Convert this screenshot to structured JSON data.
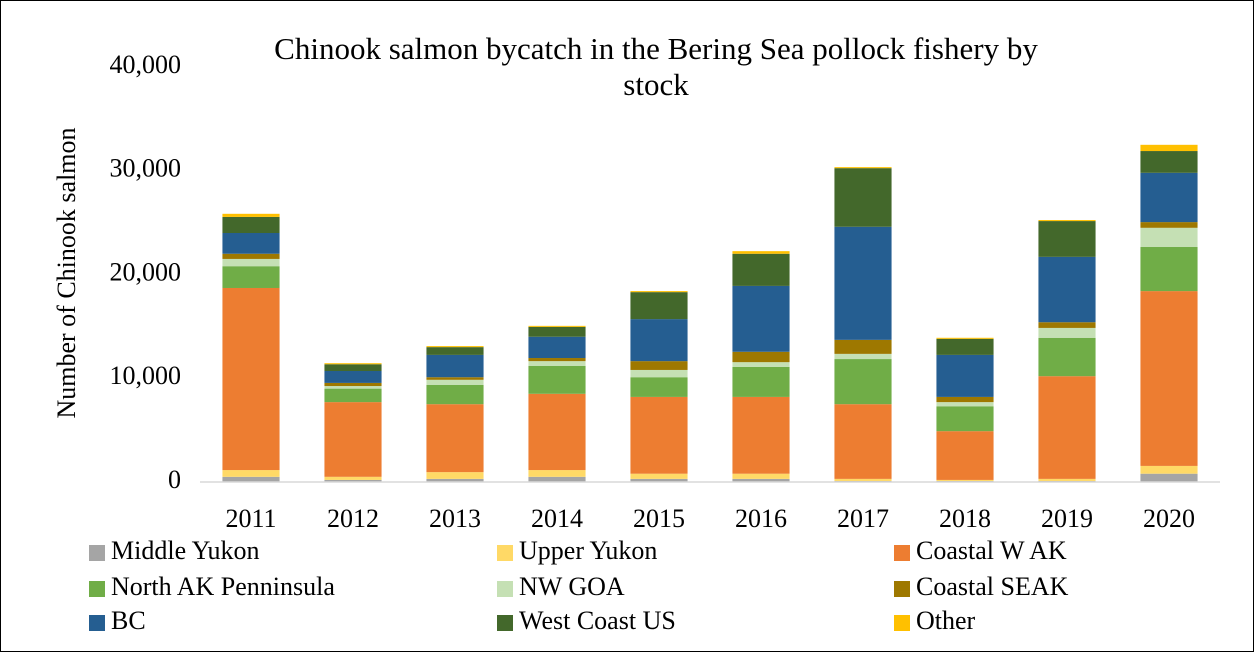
{
  "chart_data": {
    "type": "bar",
    "stacked": true,
    "title": "Chinook salmon bycatch in the Bering Sea pollock fishery by stock",
    "ylabel": "Number of Chinook salmon",
    "categories": [
      "2011",
      "2012",
      "2013",
      "2014",
      "2015",
      "2016",
      "2017",
      "2018",
      "2019",
      "2020"
    ],
    "ylim": [
      0,
      40000
    ],
    "yticks": [
      0,
      {
        "value": 10000,
        "label": "10,000"
      },
      {
        "value": 20000,
        "label": "20,000"
      },
      {
        "value": 30000,
        "label": "30,000"
      },
      {
        "value": 40000,
        "label": "40,000"
      }
    ],
    "grid": false,
    "legend": "bottom",
    "series": [
      {
        "name": "Middle Yukon",
        "color": "#a5a5a5",
        "values": [
          500,
          200,
          300,
          500,
          300,
          300,
          100,
          100,
          100,
          800
        ]
      },
      {
        "name": "Upper Yukon",
        "color": "#ffd966",
        "values": [
          650,
          300,
          650,
          650,
          500,
          500,
          200,
          100,
          200,
          750
        ]
      },
      {
        "name": "Coastal W AK",
        "color": "#ed7d31",
        "values": [
          17550,
          7200,
          6550,
          7350,
          7400,
          7400,
          7200,
          4700,
          9900,
          16850
        ]
      },
      {
        "name": "North AK Penninsula",
        "color": "#70ad47",
        "values": [
          2100,
          1300,
          1850,
          2700,
          1900,
          2900,
          4350,
          2400,
          3700,
          4250
        ]
      },
      {
        "name": "NW GOA",
        "color": "#c5e0b4",
        "values": [
          700,
          250,
          500,
          450,
          700,
          450,
          500,
          400,
          950,
          1850
        ]
      },
      {
        "name": "Coastal SEAK",
        "color": "#9e7800",
        "values": [
          500,
          300,
          250,
          300,
          850,
          1000,
          1350,
          500,
          550,
          550
        ]
      },
      {
        "name": "BC",
        "color": "#255e91",
        "values": [
          2000,
          1150,
          2150,
          2050,
          4050,
          6350,
          10900,
          4050,
          6300,
          4750
        ]
      },
      {
        "name": "West Coast US",
        "color": "#43682b",
        "values": [
          1550,
          650,
          750,
          950,
          2600,
          3100,
          5650,
          1550,
          3450,
          2100
        ]
      },
      {
        "name": "Other",
        "color": "#ffc000",
        "values": [
          300,
          100,
          100,
          100,
          100,
          250,
          100,
          100,
          100,
          600
        ]
      }
    ]
  }
}
